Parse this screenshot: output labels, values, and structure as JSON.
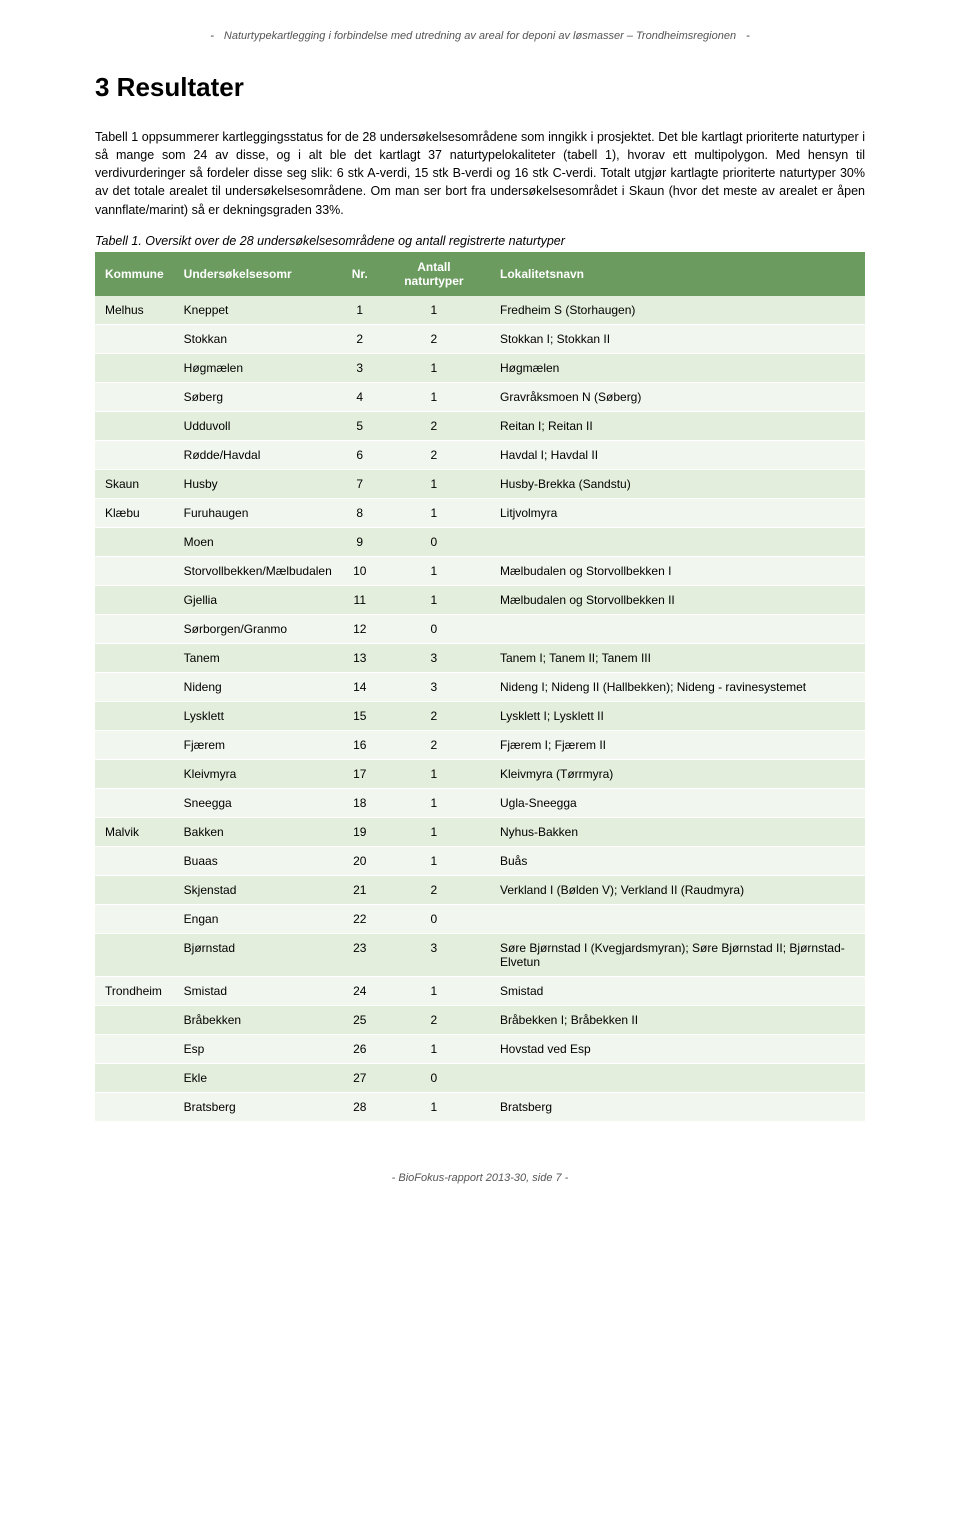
{
  "header": {
    "text": "Naturtypekartlegging i forbindelse med utredning av areal for deponi av løsmasser – Trondheimsregionen"
  },
  "title": "3  Resultater",
  "paragraph1": "Tabell 1 oppsummerer kartleggingsstatus for de 28 undersøkelsesområdene som inngikk i prosjektet. Det ble kartlagt prioriterte naturtyper i så mange som 24 av disse, og i alt ble det kartlagt 37 naturtypelokaliteter (tabell 1), hvorav ett multipolygon. Med hensyn til verdivurderinger så fordeler disse seg slik: 6 stk A-verdi, 15 stk B-verdi og 16 stk C-verdi. Totalt utgjør kartlagte prioriterte naturtyper 30% av det totale arealet til undersøkelsesområdene. Om man ser bort fra undersøkelsesområdet i Skaun (hvor det meste av arealet er åpen vannflate/marint) så er dekningsgraden 33%.",
  "caption": "Tabell 1. Oversikt over de 28 undersøkelsesområdene og antall registrerte naturtyper",
  "table": {
    "columns": {
      "kommune": "Kommune",
      "omr": "Undersøkelsesomr",
      "nr": "Nr.",
      "antall": "Antall naturtyper",
      "navn": "Lokalitetsnavn"
    },
    "rows": [
      {
        "k": "Melhus",
        "o": "Kneppet",
        "n": "1",
        "a": "1",
        "l": "Fredheim S (Storhaugen)"
      },
      {
        "k": "",
        "o": "Stokkan",
        "n": "2",
        "a": "2",
        "l": "Stokkan I; Stokkan II"
      },
      {
        "k": "",
        "o": "Høgmælen",
        "n": "3",
        "a": "1",
        "l": "Høgmælen"
      },
      {
        "k": "",
        "o": "Søberg",
        "n": "4",
        "a": "1",
        "l": "Gravråksmoen N (Søberg)"
      },
      {
        "k": "",
        "o": "Udduvoll",
        "n": "5",
        "a": "2",
        "l": "Reitan I; Reitan II"
      },
      {
        "k": "",
        "o": "Rødde/Havdal",
        "n": "6",
        "a": "2",
        "l": "Havdal I; Havdal II"
      },
      {
        "k": "Skaun",
        "o": "Husby",
        "n": "7",
        "a": "1",
        "l": "Husby-Brekka (Sandstu)"
      },
      {
        "k": "Klæbu",
        "o": "Furuhaugen",
        "n": "8",
        "a": "1",
        "l": "Litjvolmyra"
      },
      {
        "k": "",
        "o": "Moen",
        "n": "9",
        "a": "0",
        "l": ""
      },
      {
        "k": "",
        "o": "Storvollbekken/Mælbudalen",
        "n": "10",
        "a": "1",
        "l": "Mælbudalen og Storvollbekken I"
      },
      {
        "k": "",
        "o": "Gjellia",
        "n": "11",
        "a": "1",
        "l": "Mælbudalen og Storvollbekken II"
      },
      {
        "k": "",
        "o": "Sørborgen/Granmo",
        "n": "12",
        "a": "0",
        "l": ""
      },
      {
        "k": "",
        "o": "Tanem",
        "n": "13",
        "a": "3",
        "l": "Tanem I; Tanem II; Tanem III"
      },
      {
        "k": "",
        "o": "Nideng",
        "n": "14",
        "a": "3",
        "l": "Nideng I; Nideng II (Hallbekken); Nideng - ravinesystemet"
      },
      {
        "k": "",
        "o": "Lysklett",
        "n": "15",
        "a": "2",
        "l": "Lysklett I; Lysklett II"
      },
      {
        "k": "",
        "o": "Fjærem",
        "n": "16",
        "a": "2",
        "l": "Fjærem I; Fjærem II"
      },
      {
        "k": "",
        "o": "Kleivmyra",
        "n": "17",
        "a": "1",
        "l": "Kleivmyra (Tørrmyra)"
      },
      {
        "k": "",
        "o": "Sneegga",
        "n": "18",
        "a": "1",
        "l": "Ugla-Sneegga"
      },
      {
        "k": "Malvik",
        "o": "Bakken",
        "n": "19",
        "a": "1",
        "l": "Nyhus-Bakken"
      },
      {
        "k": "",
        "o": "Buaas",
        "n": "20",
        "a": "1",
        "l": "Buås"
      },
      {
        "k": "",
        "o": "Skjenstad",
        "n": "21",
        "a": "2",
        "l": "Verkland I (Bølden V); Verkland II (Raudmyra)"
      },
      {
        "k": "",
        "o": "Engan",
        "n": "22",
        "a": "0",
        "l": ""
      },
      {
        "k": "",
        "o": "Bjørnstad",
        "n": "23",
        "a": "3",
        "l": "Søre Bjørnstad I (Kvegjardsmyran); Søre Bjørnstad II; Bjørnstad-Elvetun"
      },
      {
        "k": "Trondheim",
        "o": "Smistad",
        "n": "24",
        "a": "1",
        "l": "Smistad"
      },
      {
        "k": "",
        "o": "Bråbekken",
        "n": "25",
        "a": "2",
        "l": "Bråbekken I; Bråbekken II"
      },
      {
        "k": "",
        "o": "Esp",
        "n": "26",
        "a": "1",
        "l": "Hovstad ved Esp"
      },
      {
        "k": "",
        "o": "Ekle",
        "n": "27",
        "a": "0",
        "l": ""
      },
      {
        "k": "",
        "o": "Bratsberg",
        "n": "28",
        "a": "1",
        "l": "Bratsberg"
      }
    ],
    "header_bg": "#6B9B5F",
    "header_fg": "#ffffff",
    "row_odd_bg": "#E4EEDC",
    "row_even_bg": "#F1F6EE"
  },
  "footer": "- BioFokus-rapport 2013-30, side 7 -"
}
